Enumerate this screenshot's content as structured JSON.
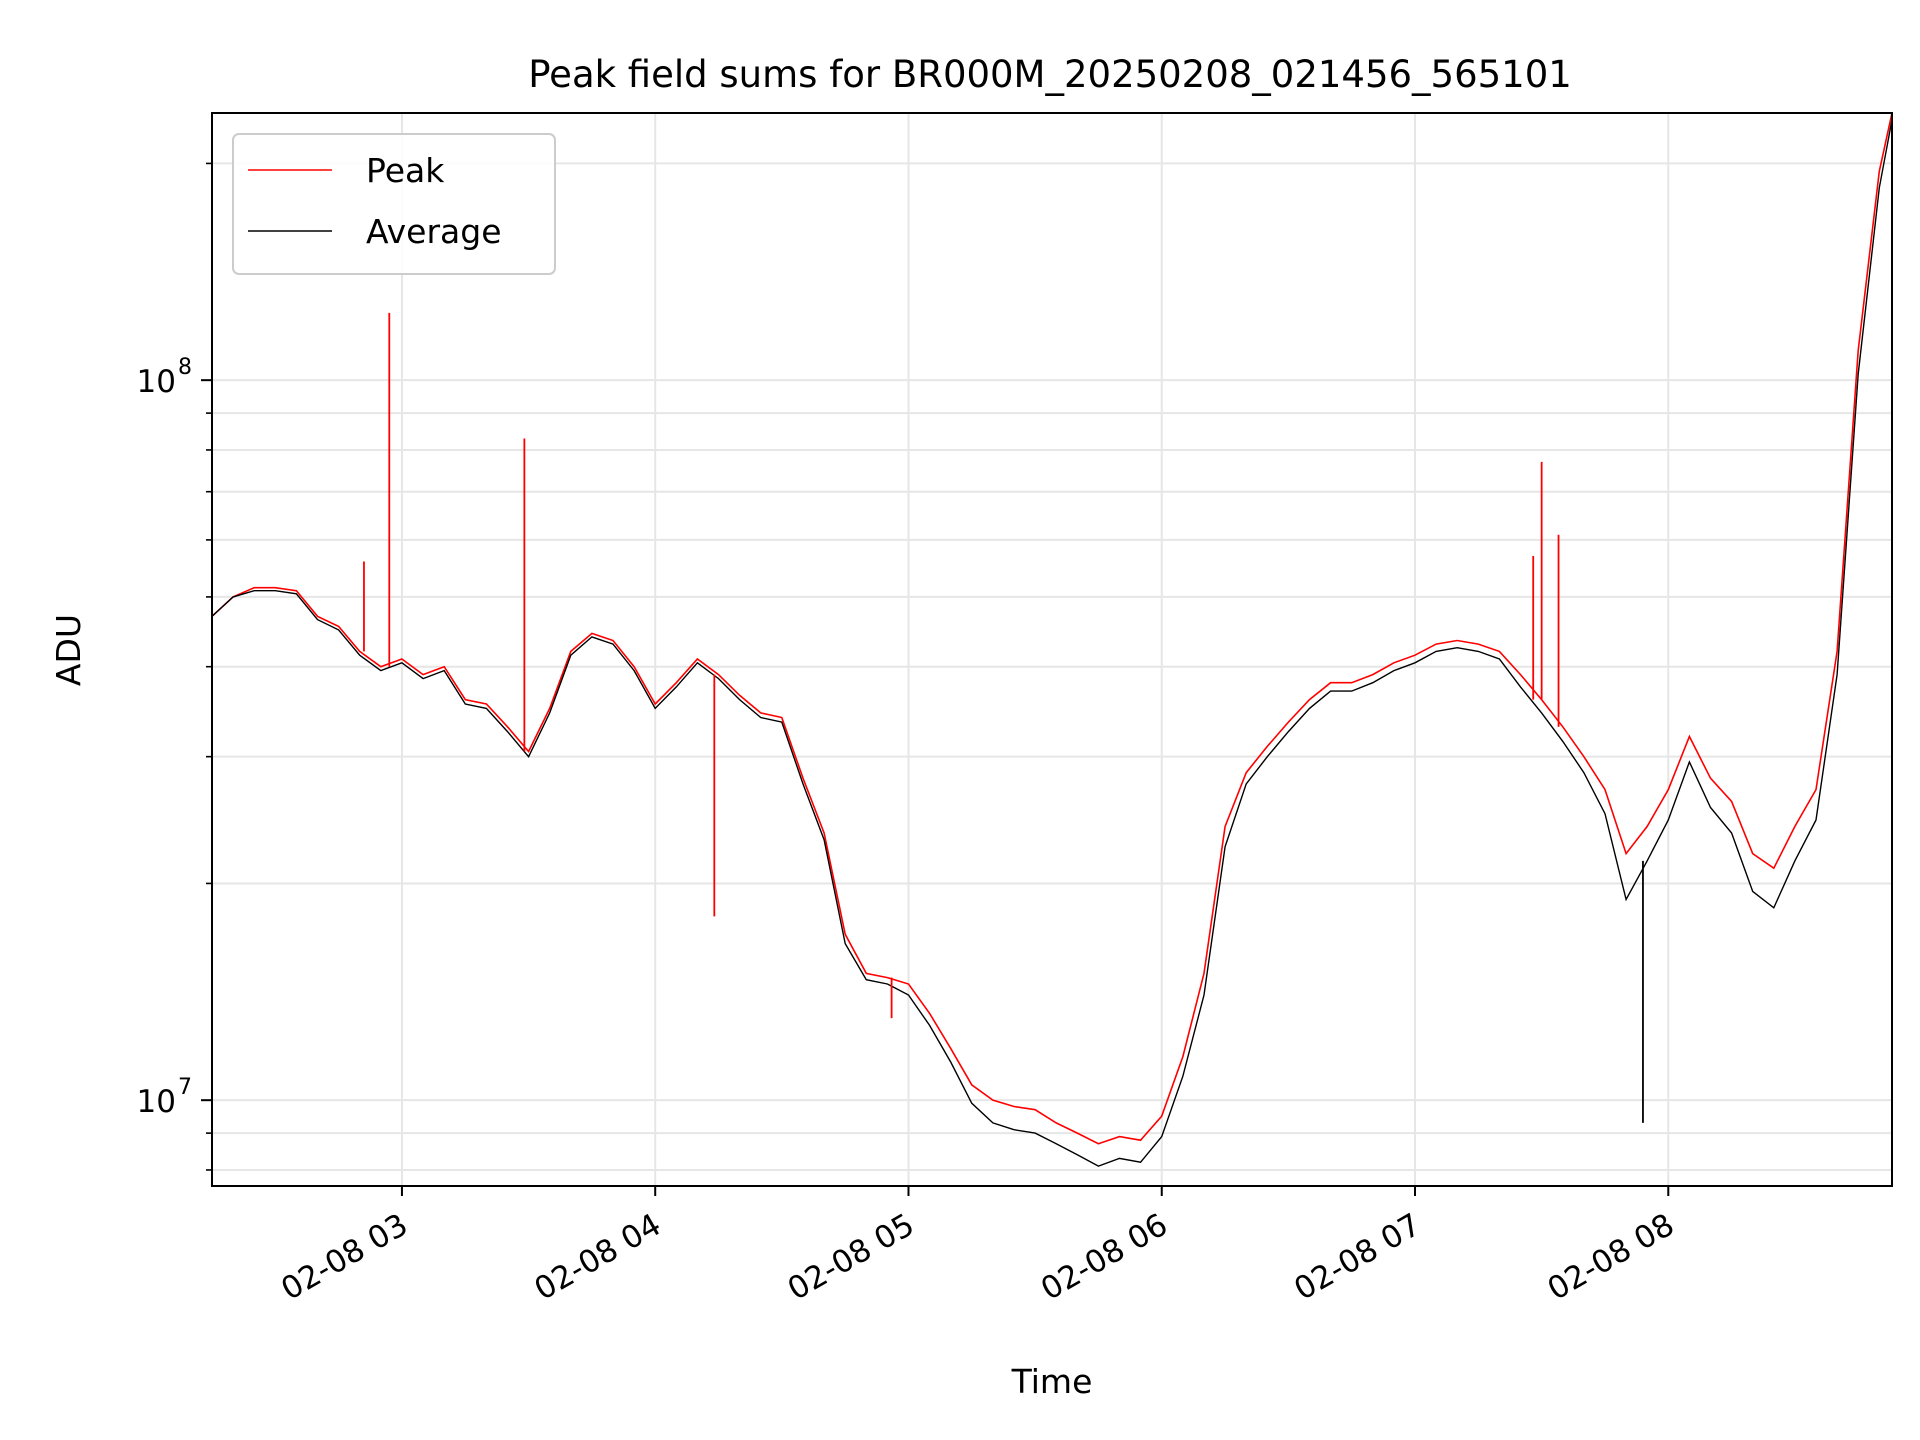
{
  "chart_data": {
    "type": "line",
    "title": "Peak field sums for BR000M_20250208_021456_565101",
    "xlabel": "Time",
    "ylabel": "ADU",
    "yscale": "log",
    "grid": true,
    "legend_position": "top-left",
    "xlim": [
      "2025-02-08 02:15",
      "2025-02-08 08:53"
    ],
    "ylim": [
      7600000,
      235000000
    ],
    "x_ticks": [
      {
        "value": "2025-02-08 03:00",
        "label": "02-08 03"
      },
      {
        "value": "2025-02-08 04:00",
        "label": "02-08 04"
      },
      {
        "value": "2025-02-08 05:00",
        "label": "02-08 05"
      },
      {
        "value": "2025-02-08 06:00",
        "label": "02-08 06"
      },
      {
        "value": "2025-02-08 07:00",
        "label": "02-08 07"
      },
      {
        "value": "2025-02-08 08:00",
        "label": "02-08 08"
      }
    ],
    "y_ticks": [
      {
        "value": 10000000,
        "base": "10",
        "exp": "7"
      },
      {
        "value": 100000000,
        "base": "10",
        "exp": "8"
      }
    ],
    "series": [
      {
        "name": "Peak",
        "color": "#ff0000",
        "points": [
          [
            "2025-02-08 02:15",
            47000000
          ],
          [
            "2025-02-08 02:20",
            50000000
          ],
          [
            "2025-02-08 02:25",
            51500000
          ],
          [
            "2025-02-08 02:30",
            51500000
          ],
          [
            "2025-02-08 02:35",
            51000000
          ],
          [
            "2025-02-08 02:40",
            47000000
          ],
          [
            "2025-02-08 02:45",
            45500000
          ],
          [
            "2025-02-08 02:50",
            42000000
          ],
          [
            "2025-02-08 02:55",
            40000000
          ],
          [
            "2025-02-08 03:00",
            41000000
          ],
          [
            "2025-02-08 03:05",
            39000000
          ],
          [
            "2025-02-08 03:10",
            40000000
          ],
          [
            "2025-02-08 03:15",
            36000000
          ],
          [
            "2025-02-08 03:20",
            35500000
          ],
          [
            "2025-02-08 03:25",
            33000000
          ],
          [
            "2025-02-08 03:30",
            30500000
          ],
          [
            "2025-02-08 03:35",
            35000000
          ],
          [
            "2025-02-08 03:40",
            42000000
          ],
          [
            "2025-02-08 03:45",
            44500000
          ],
          [
            "2025-02-08 03:50",
            43500000
          ],
          [
            "2025-02-08 03:55",
            40000000
          ],
          [
            "2025-02-08 04:00",
            35500000
          ],
          [
            "2025-02-08 04:05",
            38000000
          ],
          [
            "2025-02-08 04:10",
            41000000
          ],
          [
            "2025-02-08 04:15",
            39000000
          ],
          [
            "2025-02-08 04:20",
            36500000
          ],
          [
            "2025-02-08 04:25",
            34500000
          ],
          [
            "2025-02-08 04:30",
            34000000
          ],
          [
            "2025-02-08 04:35",
            28000000
          ],
          [
            "2025-02-08 04:40",
            23500000
          ],
          [
            "2025-02-08 04:45",
            17000000
          ],
          [
            "2025-02-08 04:50",
            15000000
          ],
          [
            "2025-02-08 04:55",
            14800000
          ],
          [
            "2025-02-08 05:00",
            14500000
          ],
          [
            "2025-02-08 05:05",
            13200000
          ],
          [
            "2025-02-08 05:10",
            11800000
          ],
          [
            "2025-02-08 05:15",
            10500000
          ],
          [
            "2025-02-08 05:20",
            10000000
          ],
          [
            "2025-02-08 05:25",
            9800000
          ],
          [
            "2025-02-08 05:30",
            9700000
          ],
          [
            "2025-02-08 05:35",
            9300000
          ],
          [
            "2025-02-08 05:40",
            9000000
          ],
          [
            "2025-02-08 05:45",
            8700000
          ],
          [
            "2025-02-08 05:50",
            8900000
          ],
          [
            "2025-02-08 05:55",
            8800000
          ],
          [
            "2025-02-08 06:00",
            9500000
          ],
          [
            "2025-02-08 06:05",
            11500000
          ],
          [
            "2025-02-08 06:10",
            15000000
          ],
          [
            "2025-02-08 06:15",
            24000000
          ],
          [
            "2025-02-08 06:20",
            28500000
          ],
          [
            "2025-02-08 06:25",
            31000000
          ],
          [
            "2025-02-08 06:30",
            33500000
          ],
          [
            "2025-02-08 06:35",
            36000000
          ],
          [
            "2025-02-08 06:40",
            38000000
          ],
          [
            "2025-02-08 06:45",
            38000000
          ],
          [
            "2025-02-08 06:50",
            39000000
          ],
          [
            "2025-02-08 06:55",
            40500000
          ],
          [
            "2025-02-08 07:00",
            41500000
          ],
          [
            "2025-02-08 07:05",
            43000000
          ],
          [
            "2025-02-08 07:10",
            43500000
          ],
          [
            "2025-02-08 07:15",
            43000000
          ],
          [
            "2025-02-08 07:20",
            42000000
          ],
          [
            "2025-02-08 07:25",
            39000000
          ],
          [
            "2025-02-08 07:30",
            36000000
          ],
          [
            "2025-02-08 07:35",
            33000000
          ],
          [
            "2025-02-08 07:40",
            30000000
          ],
          [
            "2025-02-08 07:45",
            27000000
          ],
          [
            "2025-02-08 07:50",
            22000000
          ],
          [
            "2025-02-08 07:55",
            24000000
          ],
          [
            "2025-02-08 08:00",
            27000000
          ],
          [
            "2025-02-08 08:05",
            32000000
          ],
          [
            "2025-02-08 08:10",
            28000000
          ],
          [
            "2025-02-08 08:15",
            26000000
          ],
          [
            "2025-02-08 08:20",
            22000000
          ],
          [
            "2025-02-08 08:25",
            21000000
          ],
          [
            "2025-02-08 08:30",
            24000000
          ],
          [
            "2025-02-08 08:35",
            27000000
          ],
          [
            "2025-02-08 08:40",
            42000000
          ],
          [
            "2025-02-08 08:45",
            110000000
          ],
          [
            "2025-02-08 08:50",
            195000000
          ],
          [
            "2025-02-08 08:53",
            235000000
          ]
        ]
      },
      {
        "name": "Average",
        "color": "#000000",
        "points": [
          [
            "2025-02-08 02:15",
            47000000
          ],
          [
            "2025-02-08 02:20",
            50000000
          ],
          [
            "2025-02-08 02:25",
            51000000
          ],
          [
            "2025-02-08 02:30",
            51000000
          ],
          [
            "2025-02-08 02:35",
            50500000
          ],
          [
            "2025-02-08 02:40",
            46500000
          ],
          [
            "2025-02-08 02:45",
            45000000
          ],
          [
            "2025-02-08 02:50",
            41500000
          ],
          [
            "2025-02-08 02:55",
            39500000
          ],
          [
            "2025-02-08 03:00",
            40500000
          ],
          [
            "2025-02-08 03:05",
            38500000
          ],
          [
            "2025-02-08 03:10",
            39500000
          ],
          [
            "2025-02-08 03:15",
            35500000
          ],
          [
            "2025-02-08 03:20",
            35000000
          ],
          [
            "2025-02-08 03:25",
            32500000
          ],
          [
            "2025-02-08 03:30",
            30000000
          ],
          [
            "2025-02-08 03:35",
            34500000
          ],
          [
            "2025-02-08 03:40",
            41500000
          ],
          [
            "2025-02-08 03:45",
            44000000
          ],
          [
            "2025-02-08 03:50",
            43000000
          ],
          [
            "2025-02-08 03:55",
            39500000
          ],
          [
            "2025-02-08 04:00",
            35000000
          ],
          [
            "2025-02-08 04:05",
            37500000
          ],
          [
            "2025-02-08 04:10",
            40500000
          ],
          [
            "2025-02-08 04:15",
            38500000
          ],
          [
            "2025-02-08 04:20",
            36000000
          ],
          [
            "2025-02-08 04:25",
            34000000
          ],
          [
            "2025-02-08 04:30",
            33500000
          ],
          [
            "2025-02-08 04:35",
            27500000
          ],
          [
            "2025-02-08 04:40",
            23000000
          ],
          [
            "2025-02-08 04:45",
            16500000
          ],
          [
            "2025-02-08 04:50",
            14700000
          ],
          [
            "2025-02-08 04:55",
            14500000
          ],
          [
            "2025-02-08 05:00",
            14000000
          ],
          [
            "2025-02-08 05:05",
            12700000
          ],
          [
            "2025-02-08 05:10",
            11300000
          ],
          [
            "2025-02-08 05:15",
            9900000
          ],
          [
            "2025-02-08 05:20",
            9300000
          ],
          [
            "2025-02-08 05:25",
            9100000
          ],
          [
            "2025-02-08 05:30",
            9000000
          ],
          [
            "2025-02-08 05:35",
            8700000
          ],
          [
            "2025-02-08 05:40",
            8400000
          ],
          [
            "2025-02-08 05:45",
            8100000
          ],
          [
            "2025-02-08 05:50",
            8300000
          ],
          [
            "2025-02-08 05:55",
            8200000
          ],
          [
            "2025-02-08 06:00",
            8900000
          ],
          [
            "2025-02-08 06:05",
            10800000
          ],
          [
            "2025-02-08 06:10",
            14000000
          ],
          [
            "2025-02-08 06:15",
            22500000
          ],
          [
            "2025-02-08 06:20",
            27500000
          ],
          [
            "2025-02-08 06:25",
            30000000
          ],
          [
            "2025-02-08 06:30",
            32500000
          ],
          [
            "2025-02-08 06:35",
            35000000
          ],
          [
            "2025-02-08 06:40",
            37000000
          ],
          [
            "2025-02-08 06:45",
            37000000
          ],
          [
            "2025-02-08 06:50",
            38000000
          ],
          [
            "2025-02-08 06:55",
            39500000
          ],
          [
            "2025-02-08 07:00",
            40500000
          ],
          [
            "2025-02-08 07:05",
            42000000
          ],
          [
            "2025-02-08 07:10",
            42500000
          ],
          [
            "2025-02-08 07:15",
            42000000
          ],
          [
            "2025-02-08 07:20",
            41000000
          ],
          [
            "2025-02-08 07:25",
            37500000
          ],
          [
            "2025-02-08 07:30",
            34500000
          ],
          [
            "2025-02-08 07:35",
            31500000
          ],
          [
            "2025-02-08 07:40",
            28500000
          ],
          [
            "2025-02-08 07:45",
            25000000
          ],
          [
            "2025-02-08 07:50",
            19000000
          ],
          [
            "2025-02-08 07:55",
            21500000
          ],
          [
            "2025-02-08 08:00",
            24500000
          ],
          [
            "2025-02-08 08:05",
            29500000
          ],
          [
            "2025-02-08 08:10",
            25500000
          ],
          [
            "2025-02-08 08:15",
            23500000
          ],
          [
            "2025-02-08 08:20",
            19500000
          ],
          [
            "2025-02-08 08:25",
            18500000
          ],
          [
            "2025-02-08 08:30",
            21500000
          ],
          [
            "2025-02-08 08:35",
            24500000
          ],
          [
            "2025-02-08 08:40",
            39000000
          ],
          [
            "2025-02-08 08:45",
            102000000
          ],
          [
            "2025-02-08 08:50",
            185000000
          ],
          [
            "2025-02-08 08:53",
            230000000
          ]
        ]
      }
    ],
    "annotations": [
      {
        "series": "Peak",
        "x": "2025-02-08 02:51",
        "y": 56000000
      },
      {
        "series": "Peak",
        "x": "2025-02-08 02:57",
        "y": 124000000
      },
      {
        "series": "Peak",
        "x": "2025-02-08 03:29",
        "y": 83000000
      },
      {
        "series": "Peak",
        "x": "2025-02-08 04:14",
        "y": 18000000
      },
      {
        "series": "Peak",
        "x": "2025-02-08 04:56",
        "y": 13000000
      },
      {
        "series": "Peak",
        "x": "2025-02-08 07:28",
        "y": 57000000
      },
      {
        "series": "Peak",
        "x": "2025-02-08 07:30",
        "y": 77000000
      },
      {
        "series": "Peak",
        "x": "2025-02-08 07:34",
        "y": 61000000
      },
      {
        "series": "Average",
        "x": "2025-02-08 07:54",
        "y": 9300000
      }
    ]
  }
}
